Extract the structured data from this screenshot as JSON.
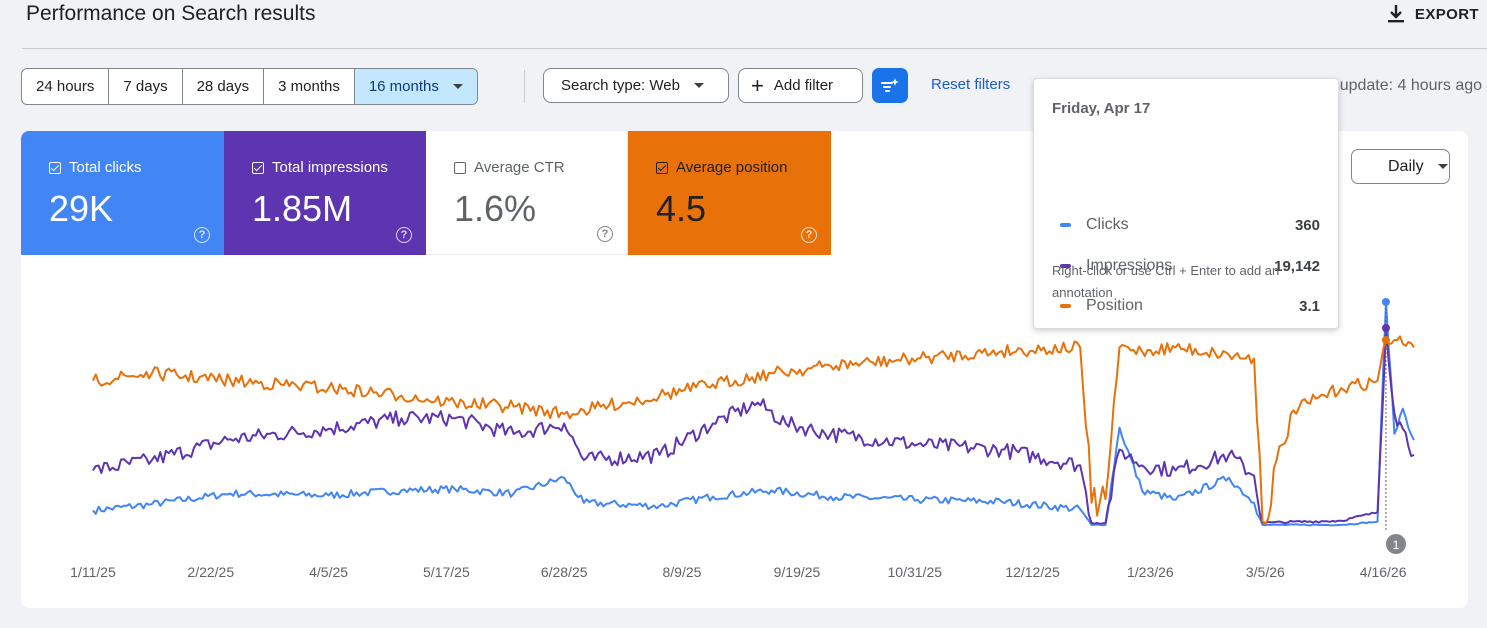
{
  "header": {
    "title": "Performance on Search results",
    "export_label": "EXPORT",
    "export_icon": "download-icon"
  },
  "date_ranges": [
    "24 hours",
    "7 days",
    "28 days",
    "3 months",
    "16 months"
  ],
  "date_range_selected": "16 months",
  "filters": {
    "search_type_label": "Search type: Web",
    "add_filter_label": "Add filter",
    "reset_label": "Reset filters",
    "last_update": "Last update: 4 hours ago"
  },
  "metrics": {
    "clicks": {
      "label": "Total clicks",
      "value": "29K",
      "checked": true,
      "color": "#4285f4"
    },
    "impressions": {
      "label": "Total impressions",
      "value": "1.85M",
      "checked": true,
      "color": "#5e35b1"
    },
    "ctr": {
      "label": "Average CTR",
      "value": "1.6%",
      "checked": false
    },
    "position": {
      "label": "Average position",
      "value": "4.5",
      "checked": true,
      "color": "#e8710a"
    }
  },
  "granularity": "Daily",
  "tooltip": {
    "date": "Friday, Apr 17",
    "rows": [
      {
        "name": "Clicks",
        "value": "360"
      },
      {
        "name": "Impressions",
        "value": "19,142"
      },
      {
        "name": "Position",
        "value": "3.1"
      }
    ],
    "hint": "Right-click or use Ctrl + Enter to add an annotation"
  },
  "annotation_marker": "1",
  "chart_data": {
    "type": "line",
    "x_labels": [
      "1/11/25",
      "2/22/25",
      "4/5/25",
      "5/17/25",
      "6/28/25",
      "8/9/25",
      "9/19/25",
      "10/31/25",
      "12/12/25",
      "1/23/26",
      "3/5/26",
      "4/16/26"
    ],
    "x_range": [
      "1/11/25",
      "4/27/26"
    ],
    "axes_labels_hidden": true,
    "series": [
      {
        "name": "Clicks",
        "color": "#4285f4",
        "points": [
          [
            "1/11/25",
            28
          ],
          [
            "2/1/25",
            38
          ],
          [
            "3/1/25",
            55
          ],
          [
            "4/5/25",
            52
          ],
          [
            "5/1/25",
            60
          ],
          [
            "5/20/25",
            62
          ],
          [
            "6/10/25",
            55
          ],
          [
            "6/28/25",
            80
          ],
          [
            "7/5/25",
            40
          ],
          [
            "8/1/25",
            35
          ],
          [
            "8/20/25",
            50
          ],
          [
            "9/10/25",
            60
          ],
          [
            "10/1/25",
            50
          ],
          [
            "11/1/25",
            45
          ],
          [
            "12/1/25",
            42
          ],
          [
            "12/29/25",
            30
          ],
          [
            "1/2/26",
            5
          ],
          [
            "1/7/26",
            5
          ],
          [
            "1/12/26",
            160
          ],
          [
            "1/20/26",
            60
          ],
          [
            "2/1/26",
            45
          ],
          [
            "2/20/26",
            80
          ],
          [
            "3/1/26",
            40
          ],
          [
            "3/4/26",
            5
          ],
          [
            "4/1/26",
            5
          ],
          [
            "4/14/26",
            10
          ],
          [
            "4/17/26",
            360
          ],
          [
            "4/20/26",
            150
          ],
          [
            "4/23/26",
            190
          ],
          [
            "4/27/26",
            140
          ]
        ]
      },
      {
        "name": "Impressions",
        "color": "#5e35b1",
        "points": [
          [
            "1/11/25",
            5500
          ],
          [
            "2/1/25",
            6500
          ],
          [
            "3/1/25",
            8500
          ],
          [
            "4/5/25",
            9500
          ],
          [
            "5/1/25",
            10500
          ],
          [
            "5/20/25",
            10500
          ],
          [
            "6/10/25",
            9000
          ],
          [
            "6/28/25",
            10000
          ],
          [
            "7/5/25",
            6500
          ],
          [
            "8/1/25",
            7000
          ],
          [
            "8/20/25",
            10000
          ],
          [
            "9/5/25",
            12000
          ],
          [
            "9/15/25",
            10000
          ],
          [
            "10/1/25",
            9000
          ],
          [
            "11/1/25",
            8000
          ],
          [
            "12/1/25",
            7500
          ],
          [
            "12/29/25",
            6000
          ],
          [
            "1/2/26",
            500
          ],
          [
            "1/7/26",
            500
          ],
          [
            "1/12/26",
            7500
          ],
          [
            "1/20/26",
            6000
          ],
          [
            "2/1/26",
            5500
          ],
          [
            "2/20/26",
            7000
          ],
          [
            "3/1/26",
            5000
          ],
          [
            "3/4/26",
            500
          ],
          [
            "4/1/26",
            700
          ],
          [
            "4/14/26",
            1500
          ],
          [
            "4/17/26",
            19142
          ],
          [
            "4/20/26",
            11000
          ],
          [
            "4/23/26",
            9500
          ],
          [
            "4/27/26",
            7000
          ]
        ]
      },
      {
        "name": "Position",
        "color": "#e8710a",
        "points": [
          [
            "1/11/25",
            4.2
          ],
          [
            "2/1/25",
            4.0
          ],
          [
            "3/1/25",
            4.2
          ],
          [
            "4/5/25",
            4.4
          ],
          [
            "5/1/25",
            4.6
          ],
          [
            "5/20/25",
            4.8
          ],
          [
            "6/10/25",
            4.9
          ],
          [
            "6/28/25",
            5.1
          ],
          [
            "7/5/25",
            5.0
          ],
          [
            "8/1/25",
            4.6
          ],
          [
            "8/20/25",
            4.3
          ],
          [
            "9/10/25",
            4.0
          ],
          [
            "10/1/25",
            3.8
          ],
          [
            "11/1/25",
            3.6
          ],
          [
            "12/1/25",
            3.4
          ],
          [
            "12/29/25",
            3.3
          ],
          [
            "1/2/26",
            7.5
          ],
          [
            "1/7/26",
            7.4
          ],
          [
            "1/12/26",
            3.3
          ],
          [
            "1/20/26",
            3.4
          ],
          [
            "2/1/26",
            3.3
          ],
          [
            "2/20/26",
            3.5
          ],
          [
            "3/1/26",
            3.6
          ],
          [
            "3/4/26",
            8.0
          ],
          [
            "3/15/26",
            5.0
          ],
          [
            "4/1/26",
            4.4
          ],
          [
            "4/14/26",
            4.2
          ],
          [
            "4/17/26",
            3.1
          ],
          [
            "4/20/26",
            3.1
          ],
          [
            "4/23/26",
            3.2
          ],
          [
            "4/27/26",
            3.3
          ]
        ]
      }
    ],
    "annotations": [
      {
        "x": "4/17/26",
        "label": "1"
      }
    ],
    "legend": "metric cards above chart",
    "grid": false
  }
}
